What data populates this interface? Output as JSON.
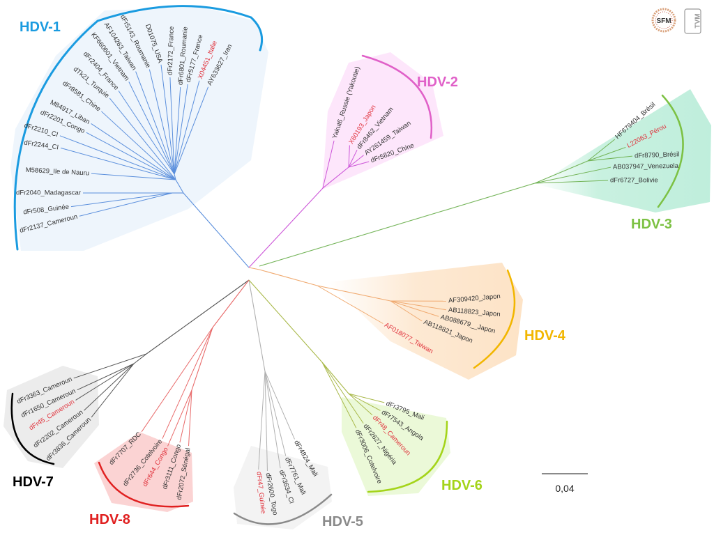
{
  "logos": {
    "sfm": "SFM",
    "tvm": "TVM"
  },
  "scale_bar": {
    "label": "0,04"
  },
  "clades": [
    {
      "label": "HDV-1",
      "color": "#1a9be0",
      "branch_color": "#5b8fdc",
      "leaves": [
        {
          "name": "dFr2137_Cameroun"
        },
        {
          "name": "dFr508_Guinée"
        },
        {
          "name": "dFr2040_Madagascar"
        },
        {
          "name": "M58629_Ile de Nauru"
        },
        {
          "name": "dFr2244_CI"
        },
        {
          "name": "dFr2210_CI"
        },
        {
          "name": "dFr2201_Congo"
        },
        {
          "name": "M84917_Liban"
        },
        {
          "name": "dFr8581_Chine"
        },
        {
          "name": "dTk21_Turquie"
        },
        {
          "name": "dFr2404_France"
        },
        {
          "name": "KF660601_Vietnam"
        },
        {
          "name": "AF104263_Taiwan"
        },
        {
          "name": "dFr5143_Roumanie"
        },
        {
          "name": "D01075_USA"
        },
        {
          "name": "dFr2172_France"
        },
        {
          "name": "dFr6801_Roumanie"
        },
        {
          "name": "dFr5177_France"
        },
        {
          "name": "X04451_Italie",
          "reference": true
        },
        {
          "name": "AY633627_Iran"
        }
      ]
    },
    {
      "label": "HDV-2",
      "color": "#e060c8",
      "branch_color": "#cc55d8",
      "leaves": [
        {
          "name": "Yakut6_Russie (Yakoutie)"
        },
        {
          "name": "X60193_Japon",
          "reference": true
        },
        {
          "name": "dFr8462_Vietnam"
        },
        {
          "name": "AY261459_Taiwan"
        },
        {
          "name": "dFr5820_Chine"
        }
      ]
    },
    {
      "label": "HDV-3",
      "color": "#7cc143",
      "branch_color": "#72b356",
      "leaves": [
        {
          "name": "HF679404_Brésil"
        },
        {
          "name": "L22063_Pérou",
          "reference": true
        },
        {
          "name": "dFr8790_Brésil"
        },
        {
          "name": "AB037947_Venezuela"
        },
        {
          "name": "dFr6727_Bolivie"
        }
      ]
    },
    {
      "label": "HDV-4",
      "color": "#f2b600",
      "branch_color": "#f0aa70",
      "leaves": [
        {
          "name": "AF309420_Japon"
        },
        {
          "name": "AB118823_Japon"
        },
        {
          "name": "AB088679__Japon"
        },
        {
          "name": "AB118821_Japon"
        },
        {
          "name": "AF018077_Taiwan",
          "reference": true
        }
      ]
    },
    {
      "label": "HDV-5",
      "color": "#8a8a8a",
      "branch_color": "#b0b0b0",
      "leaves": [
        {
          "name": "dFr47_Guinée",
          "reference": true
        },
        {
          "name": "dFr2600_Togo"
        },
        {
          "name": "dFr3634_CI"
        },
        {
          "name": "dFr7761_Mali"
        },
        {
          "name": "dFr4824_Mali"
        }
      ]
    },
    {
      "label": "HDV-6",
      "color": "#a4d41a",
      "branch_color": "#a8b848",
      "leaves": [
        {
          "name": "dFr3795_Mali"
        },
        {
          "name": "dFr7543_Angola"
        },
        {
          "name": "dFr48_Cameroun",
          "reference": true
        },
        {
          "name": "dFr2627_Nigéria"
        },
        {
          "name": "dFr3006_Cotelvoire"
        }
      ]
    },
    {
      "label": "HDV-7",
      "color": "#000000",
      "branch_color": "#555555",
      "leaves": [
        {
          "name": "dFr3363_Cameroun"
        },
        {
          "name": "dFr1650_Cameroun"
        },
        {
          "name": "dFr45_Cameroun",
          "reference": true
        },
        {
          "name": "dFr2202_Cameroun"
        },
        {
          "name": "dFr3836_Cameroun"
        }
      ]
    },
    {
      "label": "HDV-8",
      "color": "#e02020",
      "branch_color": "#e86a6a",
      "leaves": [
        {
          "name": "dFr7707_RDC"
        },
        {
          "name": "dFr2736_Cotelvoire"
        },
        {
          "name": "dFr644_Congo",
          "reference": true
        },
        {
          "name": "dFr3111_Congo"
        },
        {
          "name": "dFr2072_Sénégal"
        }
      ]
    }
  ]
}
